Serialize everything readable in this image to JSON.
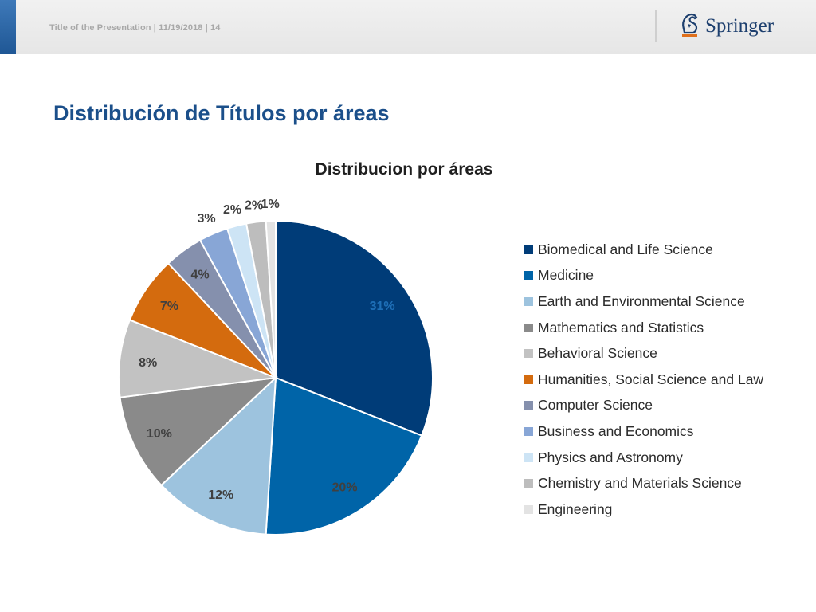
{
  "header": {
    "footer_text": "Title of the Presentation | 11/19/2018 | 14",
    "logo_text": "Springer",
    "logo_icon": "springer-horse-icon"
  },
  "slide": {
    "title": "Distribución de Títulos por áreas"
  },
  "colors": {
    "header_accent": "#2e67a8",
    "title": "#1b4f8a"
  },
  "chart_data": {
    "type": "pie",
    "title": "Distribucion por áreas",
    "legend_position": "right",
    "slices": [
      {
        "label": "Biomedical and Life Science",
        "value": 31,
        "value_label": "31%",
        "color": "#003C78"
      },
      {
        "label": "Medicine",
        "value": 20,
        "value_label": "20%",
        "color": "#0064A8"
      },
      {
        "label": "Earth and Environmental Science",
        "value": 12,
        "value_label": "12%",
        "color": "#9DC3DE"
      },
      {
        "label": "Mathematics and Statistics",
        "value": 10,
        "value_label": "10%",
        "color": "#8A8A8A"
      },
      {
        "label": "Behavioral Science",
        "value": 8,
        "value_label": "8%",
        "color": "#C2C2C2"
      },
      {
        "label": "Humanities, Social Science and Law",
        "value": 7,
        "value_label": "7%",
        "color": "#D46B0E"
      },
      {
        "label": "Computer Science",
        "value": 4,
        "value_label": "4%",
        "color": "#8590AD"
      },
      {
        "label": "Business and Economics",
        "value": 3,
        "value_label": "3%",
        "color": "#88A6D6"
      },
      {
        "label": "Physics and Astronomy",
        "value": 2,
        "value_label": "2%",
        "color": "#CDE4F5"
      },
      {
        "label": "Chemistry and Materials Science",
        "value": 2,
        "value_label": "2%",
        "color": "#BDBDBD"
      },
      {
        "label": "Engineering",
        "value": 1,
        "value_label": "1%",
        "color": "#E3E3E3"
      }
    ]
  }
}
